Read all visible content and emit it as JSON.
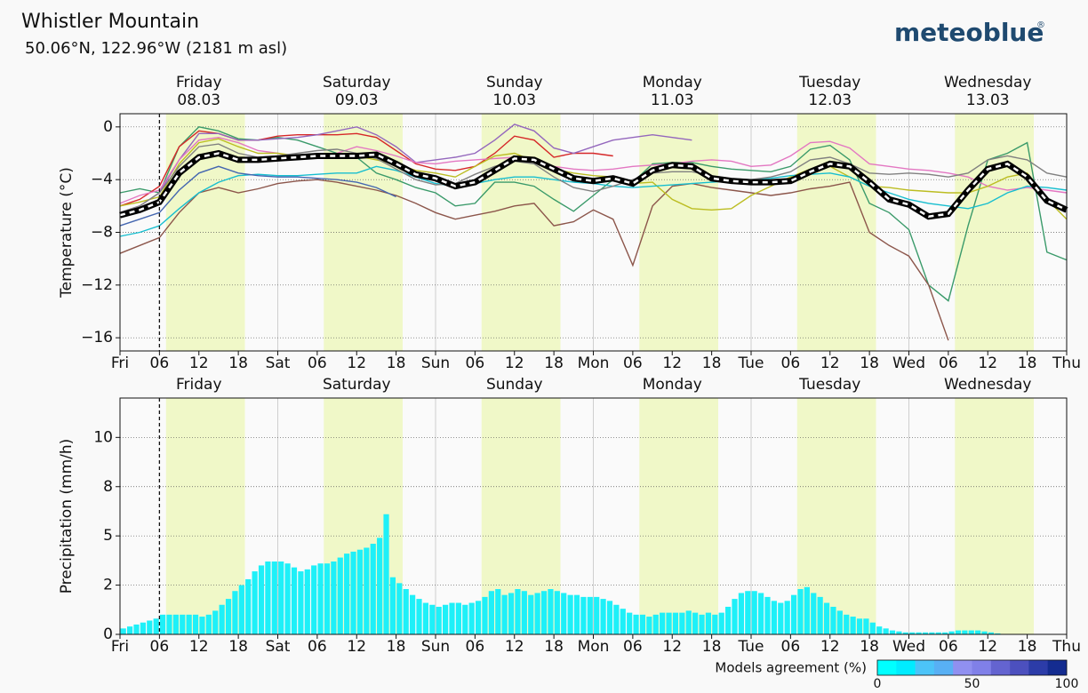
{
  "header": {
    "title": "Whistler Mountain",
    "subtitle": "50.06°N, 122.96°W (2181 m asl)",
    "logo": "meteoblue",
    "logo_mark": "®"
  },
  "chart_data": [
    {
      "type": "line",
      "y_label": "Temperature (°C)",
      "days": [
        {
          "day": "Friday",
          "date": "08.03",
          "color": "#111111"
        },
        {
          "day": "Saturday",
          "date": "09.03",
          "color": "#a52a2a"
        },
        {
          "day": "Sunday",
          "date": "10.03",
          "color": "#a52a2a"
        },
        {
          "day": "Monday",
          "date": "11.03",
          "color": "#111111"
        },
        {
          "day": "Tuesday",
          "date": "12.03",
          "color": "#111111"
        },
        {
          "day": "Wednesday",
          "date": "13.03",
          "color": "#111111"
        }
      ],
      "xlim": [
        0,
        144
      ],
      "xticks": [
        {
          "value": 0,
          "label": "Fri"
        },
        {
          "value": 6,
          "label": "06"
        },
        12,
        18,
        {
          "value": 24,
          "label": "Sat"
        },
        {
          "value": 30,
          "label": "06"
        },
        {
          "value": 36,
          "label": "12"
        },
        {
          "value": 42,
          "label": "18"
        },
        {
          "value": 48,
          "label": "Sun"
        },
        {
          "value": 54,
          "label": "06"
        },
        {
          "value": 60,
          "label": "12"
        },
        {
          "value": 66,
          "label": "18"
        },
        {
          "value": 72,
          "label": "Mon"
        },
        {
          "value": 78,
          "label": "06"
        },
        {
          "value": 84,
          "label": "12"
        },
        {
          "value": 90,
          "label": "18"
        },
        {
          "value": 96,
          "label": "Tue"
        },
        {
          "value": 102,
          "label": "06"
        },
        {
          "value": 108,
          "label": "12"
        },
        {
          "value": 114,
          "label": "18"
        },
        {
          "value": 120,
          "label": "Wed"
        },
        {
          "value": 126,
          "label": "06"
        },
        {
          "value": 132,
          "label": "12"
        },
        {
          "value": 138,
          "label": "18"
        },
        {
          "value": 144,
          "label": "Thu"
        }
      ],
      "ylim": [
        -17,
        1
      ],
      "yticks": [
        {
          "value": -16,
          "label": "−16"
        },
        {
          "value": -12,
          "label": "−12"
        },
        {
          "value": -8,
          "label": "−8"
        },
        {
          "value": -4,
          "label": "−4"
        },
        0
      ],
      "grid": true,
      "x": [
        0,
        3,
        6,
        9,
        12,
        15,
        18,
        21,
        24,
        27,
        30,
        33,
        36,
        39,
        42,
        45,
        48,
        51,
        54,
        57,
        60,
        63,
        66,
        69,
        72,
        75,
        78,
        81,
        84,
        87,
        90,
        93,
        96,
        99,
        102,
        105,
        108,
        111,
        114,
        117,
        120,
        123,
        126,
        129,
        132,
        135,
        138,
        141,
        144
      ],
      "series": [
        {
          "color": "#3a9a6a",
          "values": [
            -5.0,
            -4.7,
            -5.0,
            -1.5,
            0.0,
            -0.3,
            -0.9,
            -1.0,
            -0.8,
            -1.0,
            -1.5,
            -2.0,
            -2.3,
            -3.5,
            -4.0,
            -4.6,
            -5.0,
            -6.0,
            -5.8,
            -4.2,
            -4.2,
            -4.5,
            -5.5,
            -6.4,
            -5.2,
            -4.0,
            -4.2,
            -2.8,
            -2.7,
            -2.7,
            -3.0,
            -3.2,
            -3.3,
            -3.4,
            -3.0,
            -1.7,
            -1.4,
            -2.5,
            -5.8,
            -6.5,
            -7.8,
            -12.0,
            -13.2,
            -7.5,
            -2.5,
            -2.0,
            -1.2,
            -9.5,
            -10.1
          ]
        },
        {
          "color": "#8c564b",
          "values": [
            -9.6,
            -9.0,
            -8.4,
            -6.5,
            -5.0,
            -4.6,
            -5.0,
            -4.7,
            -4.3,
            -4.1,
            -4.0,
            -4.2,
            -4.5,
            -4.8,
            -5.2,
            -5.8,
            -6.5,
            -7.0,
            -6.7,
            -6.4,
            -6.0,
            -5.8,
            -7.5,
            -7.2,
            -6.3,
            -7.0,
            -10.5,
            -6.0,
            -4.5,
            -4.3,
            -4.6,
            -4.8,
            -5.0,
            -5.2,
            -5.0,
            -4.7,
            -4.5,
            -4.2,
            -8.0,
            -9.0,
            -9.8,
            -12.0,
            -16.2,
            null,
            null,
            null,
            null,
            null,
            null
          ]
        },
        {
          "color": "#d62728",
          "values": [
            -6.0,
            -5.5,
            -4.5,
            -1.5,
            -0.3,
            -0.5,
            -1.0,
            -1.0,
            -0.7,
            -0.6,
            -0.6,
            -0.6,
            -0.5,
            -0.8,
            -1.8,
            -2.8,
            -3.2,
            -3.3,
            -3.0,
            -2.0,
            -0.7,
            -1.0,
            -2.3,
            -2.0,
            -2.0,
            -2.2,
            null,
            null,
            null,
            null,
            null,
            null,
            null,
            null,
            null,
            null,
            null,
            null,
            null,
            null,
            null,
            null,
            null,
            null,
            null,
            null,
            null,
            null,
            null
          ]
        },
        {
          "color": "#9467bd",
          "values": [
            -6.5,
            -6.0,
            -5.0,
            -2.5,
            -0.5,
            -0.5,
            -1.0,
            -1.0,
            -0.9,
            -0.8,
            -0.6,
            -0.3,
            0.0,
            -0.6,
            -1.5,
            -2.7,
            -2.5,
            -2.3,
            -2.0,
            -1.0,
            0.2,
            -0.3,
            -1.6,
            -2.0,
            -1.5,
            -1.0,
            -0.8,
            -0.6,
            -0.8,
            -1.0,
            null,
            null,
            null,
            null,
            null,
            null,
            null,
            null,
            null,
            null,
            null,
            null,
            null,
            null,
            null,
            null,
            null,
            null,
            null
          ]
        },
        {
          "color": "#e377c2",
          "values": [
            -5.8,
            -5.2,
            -4.8,
            -2.5,
            -1.0,
            -0.8,
            -1.2,
            -1.8,
            -2.0,
            -2.3,
            -2.2,
            -2.0,
            -1.5,
            -1.8,
            -2.2,
            -2.7,
            -2.8,
            -2.6,
            -2.5,
            -2.4,
            -2.3,
            -2.6,
            -3.0,
            -3.2,
            -3.3,
            -3.2,
            -3.0,
            -2.9,
            -2.8,
            -2.6,
            -2.5,
            -2.6,
            -3.0,
            -2.9,
            -2.2,
            -1.2,
            -1.1,
            -1.6,
            -2.8,
            -3.0,
            -3.2,
            -3.3,
            -3.5,
            -3.8,
            -4.5,
            -4.8,
            -4.6,
            -4.8,
            -5.0
          ]
        },
        {
          "color": "#bcbd22",
          "values": [
            -6.0,
            -5.7,
            -5.3,
            -2.8,
            -1.2,
            -0.9,
            -1.5,
            -2.0,
            -2.0,
            -2.2,
            -2.3,
            -2.3,
            -2.2,
            -2.5,
            -2.8,
            -3.3,
            -3.5,
            -3.8,
            -3.0,
            -2.2,
            -2.0,
            -2.6,
            -3.2,
            -3.5,
            -3.7,
            -3.8,
            -4.3,
            -4.2,
            -5.5,
            -6.2,
            -6.3,
            -6.2,
            -5.2,
            -4.5,
            -3.8,
            -3.2,
            -3.0,
            -3.8,
            -4.5,
            -4.6,
            -4.8,
            -4.9,
            -5.0,
            -5.0,
            -4.5,
            -3.8,
            -3.5,
            -5.5,
            -7.0
          ]
        },
        {
          "color": "#17becf",
          "values": [
            -8.3,
            -8.0,
            -7.5,
            -6.2,
            -5.0,
            -4.2,
            -3.7,
            -3.6,
            -3.7,
            -3.7,
            -3.6,
            -3.5,
            -3.5,
            -3.0,
            -3.3,
            -3.8,
            -4.3,
            -4.5,
            -4.3,
            -4.0,
            -3.8,
            -3.8,
            -4.0,
            -4.2,
            -4.3,
            -4.5,
            -4.6,
            -4.5,
            -4.4,
            -4.3,
            -4.2,
            -4.1,
            -4.0,
            -3.9,
            -3.7,
            -3.6,
            -3.5,
            -3.8,
            -4.5,
            -5.0,
            -5.5,
            -5.8,
            -6.0,
            -6.2,
            -5.8,
            -5.0,
            -4.5,
            -4.6,
            -4.8
          ]
        },
        {
          "color": "#4466b0",
          "values": [
            -7.5,
            -7.0,
            -6.5,
            -4.8,
            -3.5,
            -3.0,
            -3.5,
            -3.7,
            -3.8,
            -3.8,
            -3.9,
            -4.0,
            -4.2,
            -4.6,
            -5.3,
            null,
            null,
            null,
            null,
            null,
            null,
            null,
            null,
            null,
            null,
            null,
            null,
            null,
            null,
            null,
            null,
            null,
            null,
            null,
            null,
            null,
            null,
            null,
            null,
            null,
            null,
            null,
            null,
            null,
            null,
            null,
            null,
            null,
            null
          ]
        },
        {
          "color": "#808080",
          "values": [
            -6.5,
            -6.0,
            -5.0,
            -3.0,
            -1.5,
            -1.3,
            -2.0,
            -2.3,
            -2.2,
            -2.0,
            -1.8,
            -1.7,
            -2.0,
            -2.4,
            -3.2,
            -4.0,
            -4.4,
            -4.3,
            -3.6,
            -3.0,
            -2.6,
            -2.8,
            -3.8,
            -4.6,
            -4.9,
            -4.5,
            -4.0,
            -3.5,
            -3.4,
            -3.4,
            -3.7,
            -3.9,
            -4.0,
            -3.8,
            -3.4,
            -2.5,
            -2.3,
            -2.8,
            -3.5,
            -3.6,
            -3.5,
            -3.6,
            -3.8,
            -3.5,
            -2.5,
            -2.2,
            -2.5,
            -3.5,
            -3.8
          ]
        }
      ],
      "mean_values": [
        -6.7,
        -6.3,
        -5.7,
        -3.5,
        -2.3,
        -2.0,
        -2.5,
        -2.5,
        -2.4,
        -2.3,
        -2.2,
        -2.2,
        -2.2,
        -2.1,
        -2.8,
        -3.6,
        -3.9,
        -4.5,
        -4.2,
        -3.3,
        -2.4,
        -2.5,
        -3.2,
        -3.9,
        -4.1,
        -3.9,
        -4.3,
        -3.3,
        -2.9,
        -3.0,
        -3.9,
        -4.1,
        -4.2,
        -4.2,
        -4.1,
        -3.4,
        -2.8,
        -3.0,
        -4.2,
        -5.5,
        -5.9,
        -6.8,
        -6.6,
        -4.8,
        -3.2,
        -2.8,
        -3.8,
        -5.6,
        -6.3
      ]
    },
    {
      "type": "bar",
      "y_label": "Precipitation (mm/h)",
      "days": [
        {
          "day": "Friday",
          "color": "#111111"
        },
        {
          "day": "Saturday",
          "color": "#a52a2a"
        },
        {
          "day": "Sunday",
          "color": "#a52a2a"
        },
        {
          "day": "Monday",
          "color": "#111111"
        },
        {
          "day": "Tuesday",
          "color": "#111111"
        },
        {
          "day": "Wednesday",
          "color": "#111111"
        }
      ],
      "xlim": [
        0,
        144
      ],
      "xticks": [
        {
          "value": 0,
          "label": "Fri"
        },
        {
          "value": 6,
          "label": "06"
        },
        12,
        18,
        {
          "value": 24,
          "label": "Sat"
        },
        {
          "value": 30,
          "label": "06"
        },
        {
          "value": 36,
          "label": "12"
        },
        {
          "value": 42,
          "label": "18"
        },
        {
          "value": 48,
          "label": "Sun"
        },
        {
          "value": 54,
          "label": "06"
        },
        {
          "value": 60,
          "label": "12"
        },
        {
          "value": 66,
          "label": "18"
        },
        {
          "value": 72,
          "label": "Mon"
        },
        {
          "value": 78,
          "label": "06"
        },
        {
          "value": 84,
          "label": "12"
        },
        {
          "value": 90,
          "label": "18"
        },
        {
          "value": 96,
          "label": "Tue"
        },
        {
          "value": 102,
          "label": "06"
        },
        {
          "value": 108,
          "label": "12"
        },
        {
          "value": 114,
          "label": "18"
        },
        {
          "value": 120,
          "label": "Wed"
        },
        {
          "value": 126,
          "label": "06"
        },
        {
          "value": 132,
          "label": "12"
        },
        {
          "value": 138,
          "label": "18"
        },
        {
          "value": 144,
          "label": "Thu"
        }
      ],
      "ylim": [
        0,
        12
      ],
      "yticks": [
        0,
        {
          "value": 2.5,
          "label": "2"
        },
        5,
        {
          "value": 7.5,
          "label": "8"
        },
        10
      ],
      "grid": true,
      "color": "#1ef0f8",
      "x": [
        0,
        1,
        2,
        3,
        4,
        5,
        6,
        7,
        8,
        9,
        10,
        11,
        12,
        13,
        14,
        15,
        16,
        17,
        18,
        19,
        20,
        21,
        22,
        23,
        24,
        25,
        26,
        27,
        28,
        29,
        30,
        31,
        32,
        33,
        34,
        35,
        36,
        37,
        38,
        39,
        40,
        41,
        42,
        43,
        44,
        45,
        46,
        47,
        48,
        49,
        50,
        51,
        52,
        53,
        54,
        55,
        56,
        57,
        58,
        59,
        60,
        61,
        62,
        63,
        64,
        65,
        66,
        67,
        68,
        69,
        70,
        71,
        72,
        73,
        74,
        75,
        76,
        77,
        78,
        79,
        80,
        81,
        82,
        83,
        84,
        85,
        86,
        87,
        88,
        89,
        90,
        91,
        92,
        93,
        94,
        95,
        96,
        97,
        98,
        99,
        100,
        101,
        102,
        103,
        104,
        105,
        106,
        107,
        108,
        109,
        110,
        111,
        112,
        113,
        114,
        115,
        116,
        117,
        118,
        119,
        120,
        121,
        122,
        123,
        124,
        125,
        126,
        127,
        128,
        129,
        130,
        131,
        132,
        133,
        134,
        135,
        136,
        137,
        138,
        139,
        140,
        141,
        142,
        143
      ],
      "values": [
        0.3,
        0.4,
        0.5,
        0.6,
        0.7,
        0.8,
        1.0,
        1.0,
        1.0,
        1.0,
        1.0,
        1.0,
        0.9,
        1.0,
        1.2,
        1.5,
        1.8,
        2.2,
        2.5,
        2.8,
        3.2,
        3.5,
        3.7,
        3.7,
        3.7,
        3.6,
        3.4,
        3.2,
        3.3,
        3.5,
        3.6,
        3.6,
        3.7,
        3.9,
        4.1,
        4.2,
        4.3,
        4.4,
        4.6,
        4.9,
        6.1,
        2.9,
        2.6,
        2.3,
        2.0,
        1.8,
        1.6,
        1.5,
        1.4,
        1.5,
        1.6,
        1.6,
        1.5,
        1.6,
        1.7,
        1.9,
        2.2,
        2.3,
        2.0,
        2.1,
        2.3,
        2.2,
        2.0,
        2.1,
        2.2,
        2.3,
        2.2,
        2.1,
        2.0,
        2.0,
        1.9,
        1.9,
        1.9,
        1.8,
        1.7,
        1.5,
        1.3,
        1.1,
        1.0,
        1.0,
        0.9,
        1.0,
        1.1,
        1.1,
        1.1,
        1.1,
        1.2,
        1.1,
        1.0,
        1.1,
        1.0,
        1.1,
        1.4,
        1.8,
        2.1,
        2.2,
        2.2,
        2.1,
        1.9,
        1.7,
        1.6,
        1.7,
        2.0,
        2.3,
        2.4,
        2.1,
        1.9,
        1.6,
        1.4,
        1.2,
        1.0,
        0.9,
        0.8,
        0.8,
        0.6,
        0.4,
        0.3,
        0.2,
        0.15,
        0.1,
        0.1,
        0.1,
        0.1,
        0.1,
        0.1,
        0.1,
        0.15,
        0.2,
        0.2,
        0.2,
        0.2,
        0.15,
        0.1,
        0.05,
        0,
        0,
        0,
        0,
        0,
        0,
        0,
        0,
        0,
        0
      ],
      "colorbar": {
        "label": "Models agreement (%)",
        "lim": [
          0,
          100
        ],
        "ticks": [
          0,
          50,
          100
        ],
        "colors": [
          "#00ffff",
          "#00ecff",
          "#4cc4f8",
          "#58b0f4",
          "#9090f0",
          "#8080e8",
          "#6464d0",
          "#4c50be",
          "#2c3ca8",
          "#142c90"
        ]
      }
    }
  ]
}
